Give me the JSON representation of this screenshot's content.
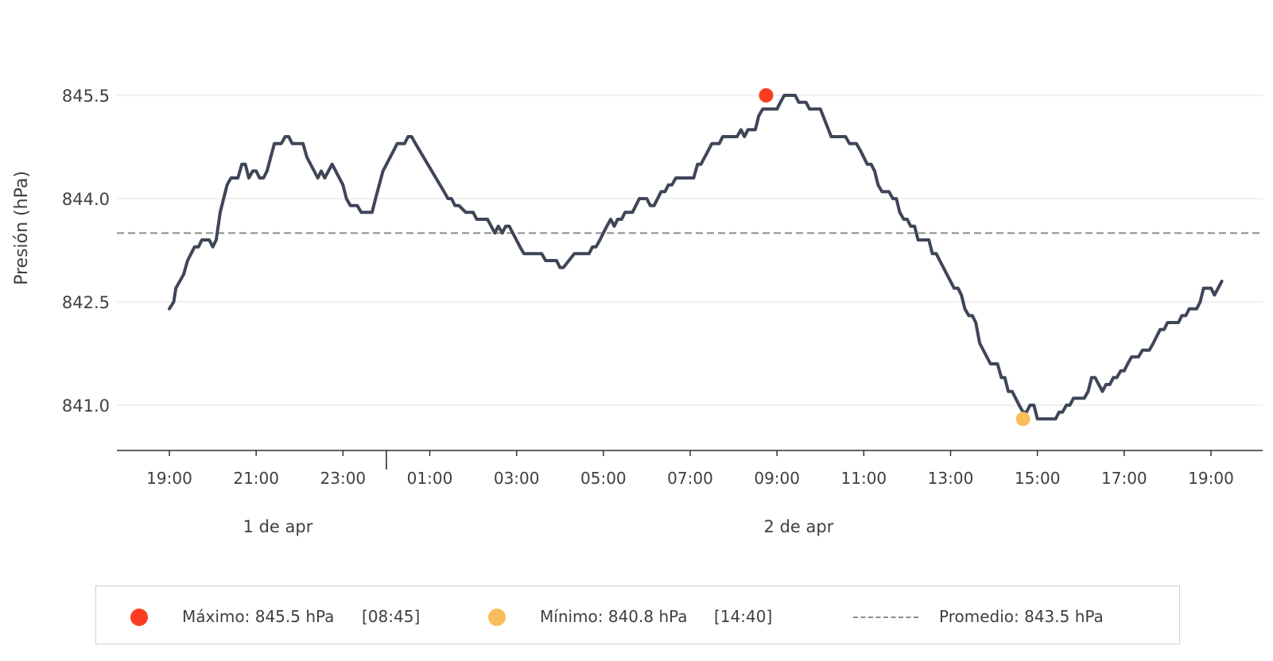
{
  "chart_data": {
    "type": "line",
    "title": "",
    "xlabel": "",
    "ylabel": "Presión (hPa)",
    "ylim": [
      840.3,
      846.3
    ],
    "y_ticks": [
      "845.5",
      "844.0",
      "842.5",
      "841.0"
    ],
    "y_tick_values": [
      845.5,
      844.0,
      842.5,
      841.0
    ],
    "x_start": "19:00 1 apr",
    "x_tick_labels": [
      "19:00",
      "21:00",
      "23:00",
      "01:00",
      "03:00",
      "05:00",
      "07:00",
      "09:00",
      "11:00",
      "13:00",
      "15:00",
      "17:00",
      "19:00"
    ],
    "x_tick_hours": [
      0,
      2,
      4,
      6,
      8,
      10,
      12,
      14,
      16,
      18,
      20,
      22,
      24
    ],
    "date_labels": [
      {
        "text": "1 de apr",
        "center_hour": 2.5
      },
      {
        "text": "2 de apr",
        "center_hour": 14.5
      }
    ],
    "day_boundary_hour": 5,
    "grid": "horizontal",
    "series": [
      {
        "color": "#3e4658",
        "points": [
          [
            0.0,
            842.4
          ],
          [
            0.1,
            842.5
          ],
          [
            0.15,
            842.7
          ],
          [
            0.33,
            842.9
          ],
          [
            0.42,
            843.1
          ],
          [
            0.58,
            843.3
          ],
          [
            0.67,
            843.3
          ],
          [
            0.75,
            843.4
          ],
          [
            0.92,
            843.4
          ],
          [
            1.0,
            843.3
          ],
          [
            1.08,
            843.4
          ],
          [
            1.17,
            843.8
          ],
          [
            1.33,
            844.2
          ],
          [
            1.42,
            844.3
          ],
          [
            1.58,
            844.3
          ],
          [
            1.67,
            844.5
          ],
          [
            1.75,
            844.5
          ],
          [
            1.83,
            844.3
          ],
          [
            1.92,
            844.4
          ],
          [
            2.0,
            844.4
          ],
          [
            2.08,
            844.3
          ],
          [
            2.17,
            844.3
          ],
          [
            2.25,
            844.4
          ],
          [
            2.42,
            844.8
          ],
          [
            2.58,
            844.8
          ],
          [
            2.67,
            844.9
          ],
          [
            2.75,
            844.9
          ],
          [
            2.83,
            844.8
          ],
          [
            3.08,
            844.8
          ],
          [
            3.17,
            844.6
          ],
          [
            3.42,
            844.3
          ],
          [
            3.5,
            844.4
          ],
          [
            3.58,
            844.3
          ],
          [
            3.75,
            844.5
          ],
          [
            4.0,
            844.2
          ],
          [
            4.08,
            844.0
          ],
          [
            4.17,
            843.9
          ],
          [
            4.33,
            843.9
          ],
          [
            4.42,
            843.8
          ],
          [
            4.67,
            843.8
          ],
          [
            4.75,
            844.0
          ],
          [
            4.92,
            844.4
          ],
          [
            5.17,
            844.7
          ],
          [
            5.25,
            844.8
          ],
          [
            5.42,
            844.8
          ],
          [
            5.5,
            844.9
          ],
          [
            5.58,
            844.9
          ],
          [
            5.67,
            844.8
          ],
          [
            6.33,
            844.1
          ],
          [
            6.42,
            844.0
          ],
          [
            6.5,
            844.0
          ],
          [
            6.58,
            843.9
          ],
          [
            6.67,
            843.9
          ],
          [
            6.83,
            843.8
          ],
          [
            6.92,
            843.8
          ],
          [
            7.0,
            843.8
          ],
          [
            7.08,
            843.7
          ],
          [
            7.33,
            843.7
          ],
          [
            7.5,
            843.5
          ],
          [
            7.58,
            843.6
          ],
          [
            7.67,
            843.5
          ],
          [
            7.75,
            843.6
          ],
          [
            7.83,
            843.6
          ],
          [
            8.08,
            843.3
          ],
          [
            8.17,
            843.2
          ],
          [
            8.58,
            843.2
          ],
          [
            8.67,
            843.1
          ],
          [
            8.92,
            843.1
          ],
          [
            9.0,
            843.0
          ],
          [
            9.08,
            843.0
          ],
          [
            9.33,
            843.2
          ],
          [
            9.67,
            843.2
          ],
          [
            9.75,
            843.3
          ],
          [
            9.83,
            843.3
          ],
          [
            9.92,
            843.4
          ],
          [
            10.08,
            843.6
          ],
          [
            10.17,
            843.7
          ],
          [
            10.25,
            843.6
          ],
          [
            10.33,
            843.7
          ],
          [
            10.42,
            843.7
          ],
          [
            10.5,
            843.8
          ],
          [
            10.67,
            843.8
          ],
          [
            10.83,
            844.0
          ],
          [
            11.0,
            844.0
          ],
          [
            11.08,
            843.9
          ],
          [
            11.17,
            843.9
          ],
          [
            11.33,
            844.1
          ],
          [
            11.42,
            844.1
          ],
          [
            11.5,
            844.2
          ],
          [
            11.58,
            844.2
          ],
          [
            11.67,
            844.3
          ],
          [
            12.0,
            844.3
          ],
          [
            12.08,
            844.3
          ],
          [
            12.17,
            844.5
          ],
          [
            12.25,
            844.5
          ],
          [
            12.5,
            844.8
          ],
          [
            12.67,
            844.8
          ],
          [
            12.75,
            844.9
          ],
          [
            13.0,
            844.9
          ],
          [
            13.08,
            844.9
          ],
          [
            13.17,
            845.0
          ],
          [
            13.25,
            844.9
          ],
          [
            13.33,
            845.0
          ],
          [
            13.5,
            845.0
          ],
          [
            13.58,
            845.2
          ],
          [
            13.67,
            845.3
          ],
          [
            14.0,
            845.3
          ],
          [
            14.08,
            845.4
          ],
          [
            14.17,
            845.5
          ],
          [
            14.33,
            845.5
          ],
          [
            14.42,
            845.5
          ],
          [
            14.5,
            845.4
          ],
          [
            14.67,
            845.4
          ],
          [
            14.75,
            845.3
          ],
          [
            14.92,
            845.3
          ],
          [
            15.0,
            845.3
          ],
          [
            15.25,
            844.9
          ],
          [
            15.58,
            844.9
          ],
          [
            15.67,
            844.8
          ],
          [
            15.83,
            844.8
          ],
          [
            15.92,
            844.7
          ],
          [
            16.08,
            844.5
          ],
          [
            16.17,
            844.5
          ],
          [
            16.25,
            844.4
          ],
          [
            16.33,
            844.2
          ],
          [
            16.42,
            844.1
          ],
          [
            16.58,
            844.1
          ],
          [
            16.67,
            844.0
          ],
          [
            16.75,
            844.0
          ],
          [
            16.83,
            843.8
          ],
          [
            16.92,
            843.7
          ],
          [
            17.0,
            843.7
          ],
          [
            17.08,
            843.6
          ],
          [
            17.17,
            843.6
          ],
          [
            17.25,
            843.4
          ],
          [
            17.5,
            843.4
          ],
          [
            17.58,
            843.2
          ],
          [
            17.67,
            843.2
          ],
          [
            17.75,
            843.1
          ],
          [
            18.08,
            842.7
          ],
          [
            18.17,
            842.7
          ],
          [
            18.25,
            842.6
          ],
          [
            18.33,
            842.4
          ],
          [
            18.42,
            842.3
          ],
          [
            18.5,
            842.3
          ],
          [
            18.58,
            842.2
          ],
          [
            18.67,
            841.9
          ],
          [
            18.92,
            841.6
          ],
          [
            19.08,
            841.6
          ],
          [
            19.17,
            841.4
          ],
          [
            19.25,
            841.4
          ],
          [
            19.33,
            841.2
          ],
          [
            19.42,
            841.2
          ],
          [
            19.58,
            841.0
          ],
          [
            19.67,
            840.9
          ],
          [
            19.75,
            840.9
          ],
          [
            19.83,
            841.0
          ],
          [
            19.92,
            841.0
          ],
          [
            20.0,
            840.8
          ],
          [
            20.08,
            840.8
          ],
          [
            20.17,
            840.8
          ],
          [
            20.33,
            840.8
          ],
          [
            20.42,
            840.8
          ],
          [
            20.5,
            840.9
          ],
          [
            20.58,
            840.9
          ],
          [
            20.67,
            841.0
          ],
          [
            20.75,
            841.0
          ],
          [
            20.83,
            841.1
          ],
          [
            21.08,
            841.1
          ],
          [
            21.17,
            841.2
          ],
          [
            21.25,
            841.4
          ],
          [
            21.33,
            841.4
          ],
          [
            21.5,
            841.2
          ],
          [
            21.58,
            841.3
          ],
          [
            21.67,
            841.3
          ],
          [
            21.75,
            841.4
          ],
          [
            21.83,
            841.4
          ],
          [
            21.92,
            841.5
          ],
          [
            22.0,
            841.5
          ],
          [
            22.08,
            841.6
          ],
          [
            22.17,
            841.7
          ],
          [
            22.33,
            841.7
          ],
          [
            22.42,
            841.8
          ],
          [
            22.58,
            841.8
          ],
          [
            22.67,
            841.9
          ],
          [
            22.83,
            842.1
          ],
          [
            22.92,
            842.1
          ],
          [
            23.0,
            842.2
          ],
          [
            23.25,
            842.2
          ],
          [
            23.33,
            842.3
          ],
          [
            23.42,
            842.3
          ],
          [
            23.5,
            842.4
          ],
          [
            23.67,
            842.4
          ],
          [
            23.75,
            842.5
          ],
          [
            23.83,
            842.7
          ],
          [
            24.0,
            842.7
          ],
          [
            24.08,
            842.6
          ],
          [
            24.25,
            842.8
          ]
        ]
      }
    ],
    "average": 843.5,
    "markers": [
      {
        "name": "max",
        "hour": 13.75,
        "value": 845.5,
        "color": "#fc3d21"
      },
      {
        "name": "min",
        "hour": 19.67,
        "value": 840.8,
        "color": "#f9bd5b"
      }
    ]
  },
  "legend": {
    "max_label": "Máximo: 845.5 hPa",
    "max_time": "[08:45]",
    "min_label": "Mínimo: 840.8 hPa",
    "min_time": "[14:40]",
    "avg_label": "Promedio: 843.5 hPa",
    "max_color": "#fc3d21",
    "min_color": "#f9bd5b",
    "avg_color": "#8c8c8c"
  }
}
